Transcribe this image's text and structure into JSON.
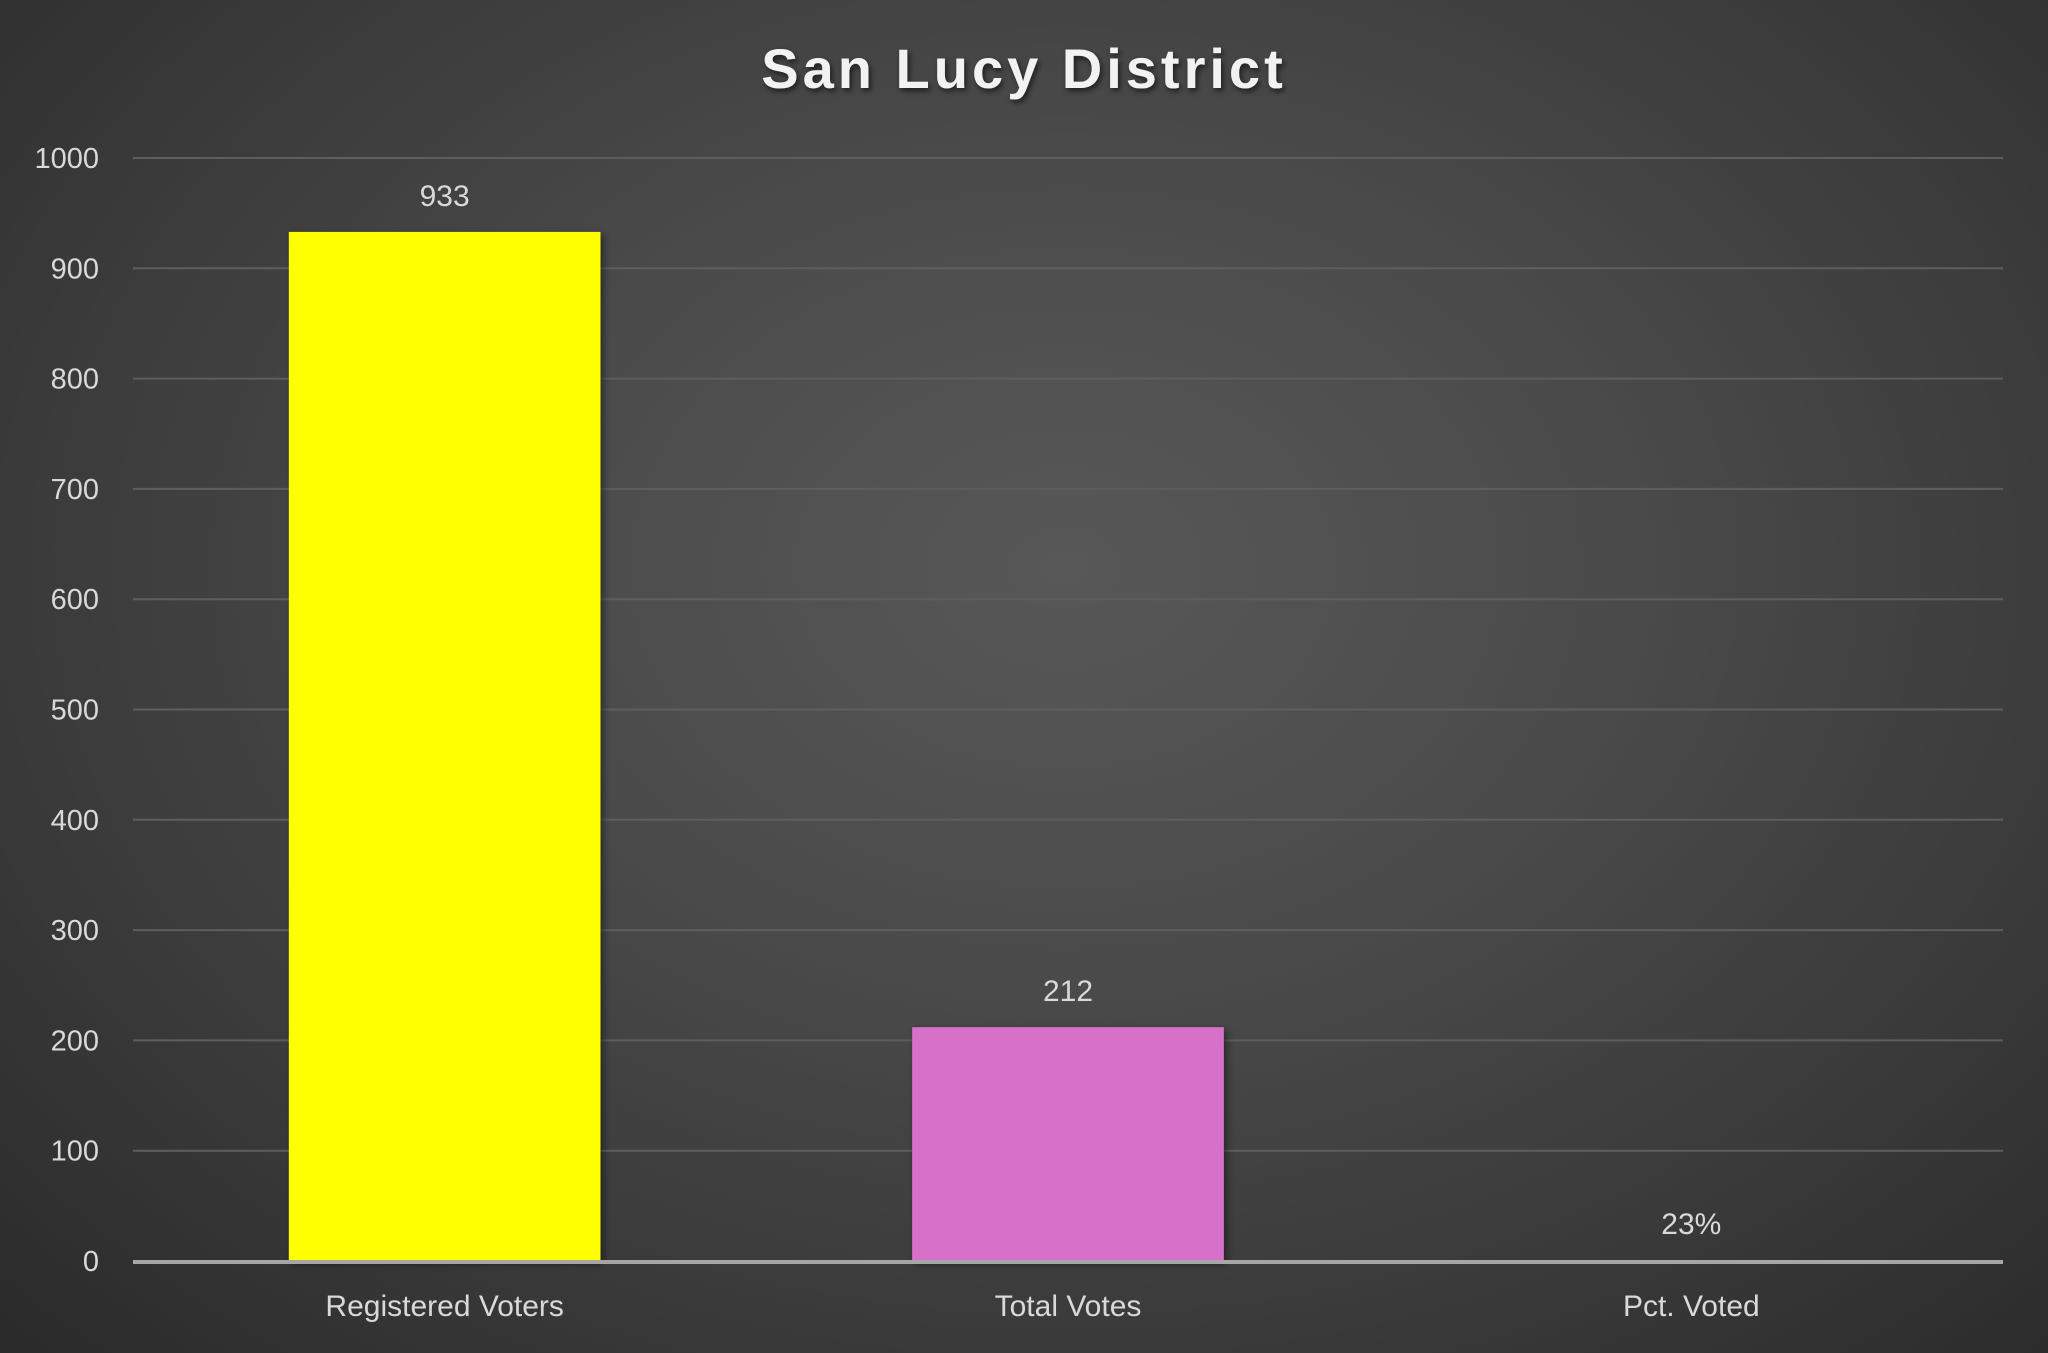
{
  "chart_data": {
    "type": "bar",
    "title": "San Lucy District",
    "xlabel": "",
    "ylabel": "",
    "ylim": [
      0,
      1000
    ],
    "yticks": [
      0,
      100,
      200,
      300,
      400,
      500,
      600,
      700,
      800,
      900,
      1000
    ],
    "grid": true,
    "legend": "none",
    "categories": [
      "Registered Voters",
      "Total Votes",
      "Pct. Voted"
    ],
    "values": [
      933,
      212,
      0.23
    ],
    "data_labels": [
      "933",
      "212",
      "23%"
    ],
    "colors": [
      "#FFFF00",
      "#D670C8",
      "#D670C8"
    ]
  },
  "style": {
    "background": "#474747",
    "text_color": "#D9D9D9",
    "title_color": "#F2F2F2",
    "grid_color": "#5E5E5E",
    "axis_color": "#A6A6A6"
  }
}
